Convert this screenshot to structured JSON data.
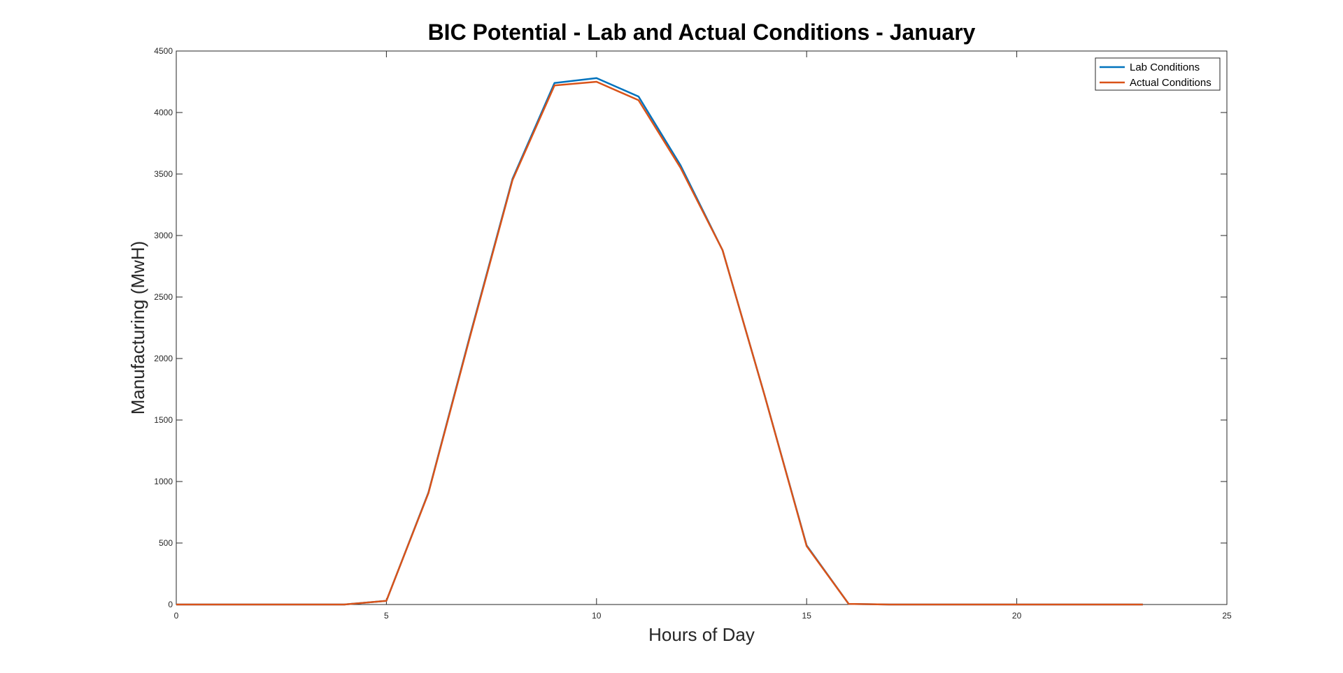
{
  "chart_data": {
    "type": "line",
    "title": "BIC Potential - Lab and Actual Conditions - January",
    "xlabel": "Hours of Day",
    "ylabel": "Manufacturing (MwH)",
    "xlim": [
      0,
      25
    ],
    "ylim": [
      0,
      4500
    ],
    "xticks": [
      0,
      5,
      10,
      15,
      20,
      25
    ],
    "yticks": [
      0,
      500,
      1000,
      1500,
      2000,
      2500,
      3000,
      3500,
      4000,
      4500
    ],
    "grid": false,
    "legend_position": "top-right",
    "x": [
      0,
      1,
      2,
      3,
      4,
      5,
      6,
      7,
      8,
      9,
      10,
      11,
      12,
      13,
      14,
      15,
      16,
      17,
      18,
      19,
      20,
      21,
      22,
      23
    ],
    "series": [
      {
        "name": "Lab Conditions",
        "color": "#0072BD",
        "values": [
          0,
          0,
          0,
          0,
          0,
          30,
          910,
          2200,
          3460,
          4240,
          4280,
          4130,
          3570,
          2880,
          1700,
          480,
          5,
          0,
          0,
          0,
          0,
          0,
          0,
          0
        ]
      },
      {
        "name": "Actual Conditions",
        "color": "#D95319",
        "values": [
          0,
          0,
          0,
          0,
          0,
          30,
          905,
          2190,
          3450,
          4220,
          4250,
          4100,
          3550,
          2880,
          1700,
          475,
          5,
          0,
          0,
          0,
          0,
          0,
          0,
          0
        ]
      }
    ]
  }
}
